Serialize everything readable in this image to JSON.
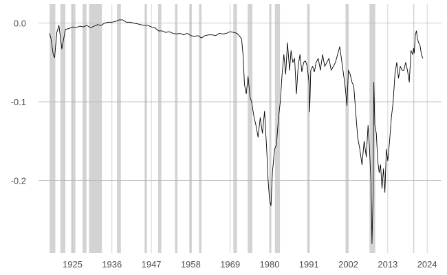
{
  "chart_data": {
    "type": "line",
    "title": "",
    "xlabel": "",
    "ylabel": "",
    "xlim": [
      1915.5,
      2028
    ],
    "ylim": [
      -0.292,
      0.024
    ],
    "grid": true,
    "legend": "none",
    "x_ticks": [
      {
        "value": 1925,
        "label": "1925"
      },
      {
        "value": 1936,
        "label": "1936"
      },
      {
        "value": 1947,
        "label": "1947"
      },
      {
        "value": 1958,
        "label": "1958"
      },
      {
        "value": 1969,
        "label": "1969"
      },
      {
        "value": 1980,
        "label": "1980"
      },
      {
        "value": 1991,
        "label": "1991"
      },
      {
        "value": 2002,
        "label": "2002"
      },
      {
        "value": 2013,
        "label": "2013"
      },
      {
        "value": 2024,
        "label": "2024"
      }
    ],
    "y_ticks": [
      {
        "value": 0.0,
        "label": "0.0"
      },
      {
        "value": -0.1,
        "label": "-0.1"
      },
      {
        "value": -0.2,
        "label": "-0.2"
      }
    ],
    "shaded_periods": [
      [
        1918.6,
        1920.2
      ],
      [
        1921.6,
        1923.0
      ],
      [
        1924.6,
        1925.8
      ],
      [
        1927.8,
        1928.9
      ],
      [
        1929.6,
        1933.2
      ],
      [
        1937.4,
        1938.5
      ],
      [
        1945.1,
        1945.8
      ],
      [
        1948.9,
        1949.8
      ],
      [
        1953.6,
        1954.3
      ],
      [
        1957.6,
        1958.3
      ],
      [
        1960.3,
        1961.0
      ],
      [
        1969.9,
        1970.9
      ],
      [
        1973.9,
        1975.2
      ],
      [
        1980.0,
        1980.5
      ],
      [
        1981.5,
        1982.9
      ],
      [
        1990.5,
        1991.2
      ],
      [
        2001.2,
        2001.9
      ],
      [
        2007.9,
        2009.5
      ],
      [
        2020.1,
        2020.4
      ]
    ],
    "series": [
      {
        "name": "",
        "color": "#000000",
        "x": [
          1918.6,
          1919.0,
          1919.6,
          1920.0,
          1920.6,
          1921.2,
          1922.0,
          1923.0,
          1924.0,
          1925.0,
          1926.0,
          1927.0,
          1928.0,
          1929.0,
          1930.0,
          1931.0,
          1932.0,
          1933.0,
          1934.0,
          1935.0,
          1936.0,
          1937.0,
          1938.0,
          1939.0,
          1940.0,
          1941.0,
          1942.0,
          1943.0,
          1944.0,
          1945.0,
          1946.0,
          1947.0,
          1948.0,
          1949.0,
          1950.0,
          1951.0,
          1952.0,
          1953.0,
          1954.0,
          1955.0,
          1956.0,
          1957.0,
          1958.0,
          1959.0,
          1960.0,
          1961.0,
          1962.0,
          1963.0,
          1964.0,
          1965.0,
          1966.0,
          1967.0,
          1968.0,
          1969.0,
          1970.0,
          1970.9,
          1971.5,
          1972.2,
          1972.6,
          1973.0,
          1973.5,
          1974.0,
          1974.6,
          1975.0,
          1975.6,
          1976.2,
          1976.8,
          1977.4,
          1978.0,
          1978.6,
          1979.2,
          1979.6,
          1980.0,
          1980.4,
          1980.8,
          1981.4,
          1981.9,
          1982.5,
          1983.0,
          1983.5,
          1984.0,
          1984.5,
          1985.0,
          1985.6,
          1986.0,
          1986.5,
          1987.0,
          1987.5,
          1988.0,
          1988.5,
          1989.0,
          1989.5,
          1990.0,
          1990.5,
          1991.0,
          1991.2,
          1991.5,
          1992.0,
          1992.5,
          1993.0,
          1993.6,
          1994.2,
          1994.8,
          1995.4,
          1996.0,
          1996.6,
          1997.2,
          1997.8,
          1998.4,
          1999.0,
          1999.6,
          2000.2,
          2000.8,
          2001.2,
          2001.6,
          2002.0,
          2002.5,
          2003.0,
          2003.5,
          2004.0,
          2004.6,
          2005.2,
          2005.8,
          2006.4,
          2007.0,
          2007.5,
          2007.9,
          2008.3,
          2008.6,
          2008.9,
          2009.1,
          2009.4,
          2009.8,
          2010.2,
          2010.6,
          2011.0,
          2011.4,
          2011.8,
          2012.2,
          2012.6,
          2013.0,
          2013.5,
          2014.0,
          2014.5,
          2015.0,
          2015.5,
          2016.0,
          2016.5,
          2017.0,
          2017.5,
          2018.0,
          2018.5,
          2019.0,
          2019.5,
          2020.0,
          2020.2,
          2020.4,
          2020.7,
          2021.0,
          2021.3,
          2021.6,
          2022.0,
          2022.4,
          2022.8
        ],
        "y": [
          -0.013,
          -0.02,
          -0.04,
          -0.044,
          -0.012,
          -0.003,
          -0.033,
          -0.008,
          -0.007,
          -0.005,
          -0.006,
          -0.004,
          -0.005,
          -0.003,
          -0.006,
          -0.004,
          -0.002,
          -0.003,
          0.0,
          0.001,
          0.001,
          0.002,
          0.004,
          0.004,
          0.001,
          0.001,
          0.0,
          -0.001,
          -0.002,
          -0.003,
          -0.003,
          -0.005,
          -0.006,
          -0.01,
          -0.01,
          -0.012,
          -0.011,
          -0.013,
          -0.014,
          -0.013,
          -0.015,
          -0.013,
          -0.016,
          -0.017,
          -0.016,
          -0.019,
          -0.016,
          -0.015,
          -0.015,
          -0.016,
          -0.013,
          -0.014,
          -0.013,
          -0.011,
          -0.012,
          -0.013,
          -0.016,
          -0.02,
          -0.04,
          -0.078,
          -0.09,
          -0.068,
          -0.095,
          -0.1,
          -0.118,
          -0.13,
          -0.145,
          -0.12,
          -0.14,
          -0.112,
          -0.16,
          -0.2,
          -0.225,
          -0.232,
          -0.19,
          -0.16,
          -0.155,
          -0.12,
          -0.1,
          -0.065,
          -0.04,
          -0.065,
          -0.025,
          -0.06,
          -0.035,
          -0.05,
          -0.045,
          -0.09,
          -0.055,
          -0.04,
          -0.062,
          -0.05,
          -0.048,
          -0.055,
          -0.075,
          -0.113,
          -0.06,
          -0.055,
          -0.062,
          -0.05,
          -0.045,
          -0.06,
          -0.04,
          -0.055,
          -0.05,
          -0.045,
          -0.06,
          -0.055,
          -0.05,
          -0.04,
          -0.03,
          -0.05,
          -0.07,
          -0.085,
          -0.105,
          -0.06,
          -0.065,
          -0.075,
          -0.08,
          -0.11,
          -0.145,
          -0.16,
          -0.18,
          -0.15,
          -0.17,
          -0.13,
          -0.16,
          -0.2,
          -0.28,
          -0.22,
          -0.075,
          -0.13,
          -0.14,
          -0.175,
          -0.19,
          -0.18,
          -0.21,
          -0.185,
          -0.215,
          -0.16,
          -0.175,
          -0.15,
          -0.12,
          -0.1,
          -0.065,
          -0.05,
          -0.07,
          -0.055,
          -0.06,
          -0.06,
          -0.05,
          -0.06,
          -0.075,
          -0.035,
          -0.04,
          -0.032,
          -0.038,
          -0.015,
          -0.01,
          -0.02,
          -0.025,
          -0.028,
          -0.04,
          -0.045
        ]
      }
    ]
  }
}
